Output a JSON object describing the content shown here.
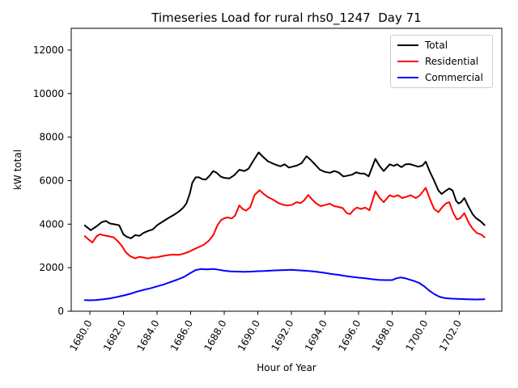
{
  "chart_data": {
    "type": "line",
    "title": "Timeseries Load for rural rhs0_1247  Day 71",
    "xlabel": "Hour of Year",
    "ylabel": "kW total",
    "xlim": [
      1678.89,
      1704.53
    ],
    "ylim": [
      0,
      13000
    ],
    "grid": false,
    "xticks": {
      "values": [
        1680,
        1682,
        1684,
        1686,
        1688,
        1690,
        1692,
        1694,
        1696,
        1698,
        1700,
        1702
      ],
      "labels": [
        "1680.0",
        "1682.0",
        "1684.0",
        "1686.0",
        "1688.0",
        "1690.0",
        "1692.0",
        "1694.0",
        "1696.0",
        "1698.0",
        "1700.0",
        "1702.0"
      ]
    },
    "yticks": {
      "values": [
        0,
        2000,
        4000,
        6000,
        8000,
        10000,
        12000
      ],
      "labels": [
        "0",
        "2000",
        "4000",
        "6000",
        "8000",
        "10000",
        "12000"
      ]
    },
    "legend": {
      "position": "upper right",
      "entries": [
        {
          "label": "Total",
          "color": "#000000"
        },
        {
          "label": "Residential",
          "color": "#ff0000"
        },
        {
          "label": "Commercial",
          "color": "#0000ff"
        }
      ]
    },
    "series": [
      {
        "name": "Total",
        "color": "#000000",
        "points": [
          [
            1679.7,
            3940
          ],
          [
            1680.05,
            3720
          ],
          [
            1680.4,
            3900
          ],
          [
            1680.7,
            4090
          ],
          [
            1680.95,
            4150
          ],
          [
            1681.2,
            4030
          ],
          [
            1681.5,
            3990
          ],
          [
            1681.75,
            3950
          ],
          [
            1682.0,
            3530
          ],
          [
            1682.2,
            3420
          ],
          [
            1682.45,
            3350
          ],
          [
            1682.7,
            3500
          ],
          [
            1682.95,
            3460
          ],
          [
            1683.2,
            3600
          ],
          [
            1683.5,
            3700
          ],
          [
            1683.75,
            3760
          ],
          [
            1684.0,
            3950
          ],
          [
            1684.3,
            4100
          ],
          [
            1684.55,
            4220
          ],
          [
            1684.8,
            4340
          ],
          [
            1685.05,
            4450
          ],
          [
            1685.3,
            4580
          ],
          [
            1685.55,
            4750
          ],
          [
            1685.75,
            4950
          ],
          [
            1685.95,
            5400
          ],
          [
            1686.1,
            5900
          ],
          [
            1686.3,
            6150
          ],
          [
            1686.5,
            6150
          ],
          [
            1686.7,
            6070
          ],
          [
            1686.9,
            6050
          ],
          [
            1687.1,
            6200
          ],
          [
            1687.35,
            6440
          ],
          [
            1687.55,
            6360
          ],
          [
            1687.8,
            6180
          ],
          [
            1688.0,
            6130
          ],
          [
            1688.3,
            6100
          ],
          [
            1688.6,
            6250
          ],
          [
            1688.9,
            6500
          ],
          [
            1689.2,
            6440
          ],
          [
            1689.45,
            6550
          ],
          [
            1689.7,
            6870
          ],
          [
            1690.05,
            7300
          ],
          [
            1690.3,
            7100
          ],
          [
            1690.6,
            6890
          ],
          [
            1690.85,
            6800
          ],
          [
            1691.1,
            6720
          ],
          [
            1691.35,
            6660
          ],
          [
            1691.6,
            6750
          ],
          [
            1691.85,
            6600
          ],
          [
            1692.1,
            6650
          ],
          [
            1692.35,
            6700
          ],
          [
            1692.6,
            6800
          ],
          [
            1692.9,
            7120
          ],
          [
            1693.15,
            6950
          ],
          [
            1693.4,
            6750
          ],
          [
            1693.7,
            6500
          ],
          [
            1694.0,
            6400
          ],
          [
            1694.3,
            6360
          ],
          [
            1694.55,
            6440
          ],
          [
            1694.8,
            6380
          ],
          [
            1695.1,
            6190
          ],
          [
            1695.35,
            6230
          ],
          [
            1695.6,
            6270
          ],
          [
            1695.85,
            6380
          ],
          [
            1696.1,
            6330
          ],
          [
            1696.35,
            6320
          ],
          [
            1696.6,
            6200
          ],
          [
            1697.0,
            7000
          ],
          [
            1697.25,
            6680
          ],
          [
            1697.5,
            6440
          ],
          [
            1697.85,
            6750
          ],
          [
            1698.1,
            6680
          ],
          [
            1698.3,
            6750
          ],
          [
            1698.55,
            6620
          ],
          [
            1698.8,
            6750
          ],
          [
            1699.05,
            6760
          ],
          [
            1699.3,
            6700
          ],
          [
            1699.55,
            6640
          ],
          [
            1699.8,
            6690
          ],
          [
            1700.0,
            6870
          ],
          [
            1700.25,
            6400
          ],
          [
            1700.5,
            6000
          ],
          [
            1700.75,
            5550
          ],
          [
            1700.95,
            5390
          ],
          [
            1701.15,
            5510
          ],
          [
            1701.4,
            5640
          ],
          [
            1701.6,
            5550
          ],
          [
            1701.8,
            5080
          ],
          [
            1701.95,
            4950
          ],
          [
            1702.1,
            5010
          ],
          [
            1702.3,
            5200
          ],
          [
            1702.55,
            4800
          ],
          [
            1702.8,
            4450
          ],
          [
            1703.0,
            4270
          ],
          [
            1703.25,
            4140
          ],
          [
            1703.5,
            3960
          ]
        ]
      },
      {
        "name": "Residential",
        "color": "#ff0000",
        "points": [
          [
            1679.7,
            3450
          ],
          [
            1679.95,
            3280
          ],
          [
            1680.15,
            3160
          ],
          [
            1680.4,
            3440
          ],
          [
            1680.6,
            3540
          ],
          [
            1680.85,
            3480
          ],
          [
            1681.1,
            3450
          ],
          [
            1681.4,
            3400
          ],
          [
            1681.65,
            3230
          ],
          [
            1681.9,
            3000
          ],
          [
            1682.15,
            2700
          ],
          [
            1682.4,
            2530
          ],
          [
            1682.7,
            2430
          ],
          [
            1682.95,
            2500
          ],
          [
            1683.2,
            2470
          ],
          [
            1683.45,
            2420
          ],
          [
            1683.7,
            2470
          ],
          [
            1684.0,
            2480
          ],
          [
            1684.3,
            2530
          ],
          [
            1684.6,
            2570
          ],
          [
            1684.95,
            2600
          ],
          [
            1685.3,
            2590
          ],
          [
            1685.6,
            2650
          ],
          [
            1685.9,
            2730
          ],
          [
            1686.2,
            2850
          ],
          [
            1686.5,
            2950
          ],
          [
            1686.8,
            3060
          ],
          [
            1687.1,
            3250
          ],
          [
            1687.35,
            3500
          ],
          [
            1687.6,
            3950
          ],
          [
            1687.8,
            4180
          ],
          [
            1688.0,
            4270
          ],
          [
            1688.2,
            4310
          ],
          [
            1688.45,
            4260
          ],
          [
            1688.65,
            4400
          ],
          [
            1688.9,
            4860
          ],
          [
            1689.1,
            4700
          ],
          [
            1689.3,
            4620
          ],
          [
            1689.55,
            4780
          ],
          [
            1689.8,
            5330
          ],
          [
            1690.1,
            5560
          ],
          [
            1690.35,
            5390
          ],
          [
            1690.6,
            5240
          ],
          [
            1690.9,
            5130
          ],
          [
            1691.2,
            4980
          ],
          [
            1691.5,
            4890
          ],
          [
            1691.8,
            4860
          ],
          [
            1692.05,
            4890
          ],
          [
            1692.3,
            5010
          ],
          [
            1692.55,
            4970
          ],
          [
            1692.75,
            5090
          ],
          [
            1693.0,
            5340
          ],
          [
            1693.25,
            5120
          ],
          [
            1693.5,
            4940
          ],
          [
            1693.75,
            4830
          ],
          [
            1694.05,
            4890
          ],
          [
            1694.3,
            4940
          ],
          [
            1694.55,
            4830
          ],
          [
            1694.8,
            4790
          ],
          [
            1695.05,
            4740
          ],
          [
            1695.3,
            4510
          ],
          [
            1695.5,
            4460
          ],
          [
            1695.7,
            4650
          ],
          [
            1695.9,
            4760
          ],
          [
            1696.15,
            4700
          ],
          [
            1696.4,
            4760
          ],
          [
            1696.65,
            4640
          ],
          [
            1697.0,
            5510
          ],
          [
            1697.25,
            5210
          ],
          [
            1697.5,
            5010
          ],
          [
            1697.85,
            5330
          ],
          [
            1698.1,
            5260
          ],
          [
            1698.35,
            5330
          ],
          [
            1698.6,
            5200
          ],
          [
            1698.85,
            5260
          ],
          [
            1699.1,
            5330
          ],
          [
            1699.4,
            5200
          ],
          [
            1699.65,
            5320
          ],
          [
            1700.0,
            5670
          ],
          [
            1700.25,
            5150
          ],
          [
            1700.5,
            4700
          ],
          [
            1700.75,
            4550
          ],
          [
            1701.0,
            4800
          ],
          [
            1701.2,
            4950
          ],
          [
            1701.4,
            5010
          ],
          [
            1701.65,
            4500
          ],
          [
            1701.85,
            4220
          ],
          [
            1702.05,
            4270
          ],
          [
            1702.3,
            4510
          ],
          [
            1702.55,
            4080
          ],
          [
            1702.8,
            3780
          ],
          [
            1703.05,
            3590
          ],
          [
            1703.3,
            3520
          ],
          [
            1703.5,
            3400
          ]
        ]
      },
      {
        "name": "Commercial",
        "color": "#0000ff",
        "points": [
          [
            1679.7,
            510
          ],
          [
            1680.0,
            500
          ],
          [
            1680.4,
            515
          ],
          [
            1680.8,
            545
          ],
          [
            1681.2,
            590
          ],
          [
            1681.6,
            650
          ],
          [
            1682.0,
            720
          ],
          [
            1682.4,
            800
          ],
          [
            1682.8,
            900
          ],
          [
            1683.2,
            980
          ],
          [
            1683.6,
            1050
          ],
          [
            1684.0,
            1140
          ],
          [
            1684.4,
            1230
          ],
          [
            1684.8,
            1340
          ],
          [
            1685.2,
            1450
          ],
          [
            1685.6,
            1570
          ],
          [
            1686.0,
            1760
          ],
          [
            1686.3,
            1890
          ],
          [
            1686.6,
            1940
          ],
          [
            1687.0,
            1920
          ],
          [
            1687.4,
            1940
          ],
          [
            1687.7,
            1900
          ],
          [
            1688.0,
            1860
          ],
          [
            1688.4,
            1830
          ],
          [
            1688.8,
            1820
          ],
          [
            1689.2,
            1810
          ],
          [
            1689.6,
            1820
          ],
          [
            1690.0,
            1840
          ],
          [
            1690.4,
            1850
          ],
          [
            1690.8,
            1870
          ],
          [
            1691.2,
            1880
          ],
          [
            1691.6,
            1890
          ],
          [
            1692.0,
            1900
          ],
          [
            1692.4,
            1880
          ],
          [
            1692.8,
            1860
          ],
          [
            1693.2,
            1840
          ],
          [
            1693.6,
            1800
          ],
          [
            1694.0,
            1760
          ],
          [
            1694.4,
            1710
          ],
          [
            1694.8,
            1670
          ],
          [
            1695.2,
            1620
          ],
          [
            1695.6,
            1580
          ],
          [
            1696.0,
            1540
          ],
          [
            1696.4,
            1510
          ],
          [
            1696.8,
            1470
          ],
          [
            1697.2,
            1440
          ],
          [
            1697.6,
            1430
          ],
          [
            1698.0,
            1430
          ],
          [
            1698.25,
            1510
          ],
          [
            1698.5,
            1550
          ],
          [
            1698.75,
            1520
          ],
          [
            1699.0,
            1460
          ],
          [
            1699.3,
            1390
          ],
          [
            1699.6,
            1300
          ],
          [
            1699.9,
            1150
          ],
          [
            1700.2,
            950
          ],
          [
            1700.5,
            790
          ],
          [
            1700.8,
            670
          ],
          [
            1701.1,
            610
          ],
          [
            1701.5,
            580
          ],
          [
            1702.0,
            560
          ],
          [
            1702.5,
            545
          ],
          [
            1703.0,
            540
          ],
          [
            1703.5,
            550
          ]
        ]
      }
    ]
  }
}
